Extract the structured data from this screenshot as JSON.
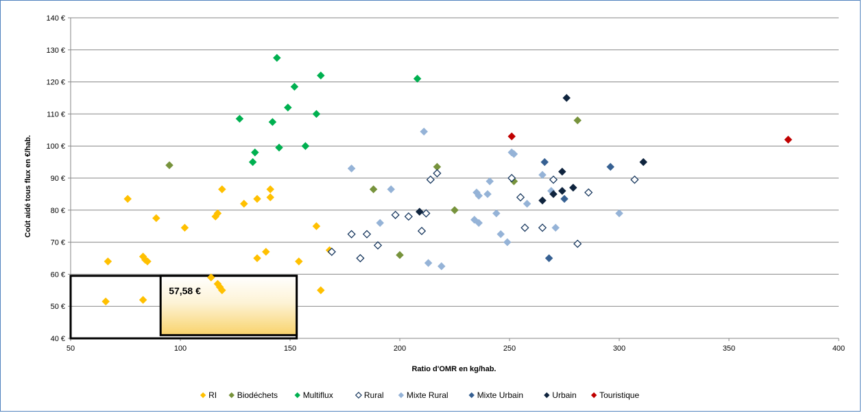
{
  "chart_data": {
    "type": "scatter",
    "xlabel": "Ratio d'OMR en kg/hab.",
    "ylabel": "Coût aidé tous flux en €/hab.",
    "xlim": [
      50,
      400
    ],
    "ylim": [
      40,
      140
    ],
    "x_ticks": [
      "50",
      "100",
      "150",
      "200",
      "250",
      "300",
      "350",
      "400"
    ],
    "y_ticks": [
      "40 €",
      "50 €",
      "60 €",
      "70 €",
      "80 €",
      "90 €",
      "100 €",
      "110 €",
      "120 €",
      "130 €",
      "140 €"
    ],
    "grid": "horizontal",
    "legend_position": "bottom",
    "series": [
      {
        "name": "RI",
        "color": "#ffc000",
        "marker": "filled",
        "points": [
          [
            66,
            51.5
          ],
          [
            67,
            64
          ],
          [
            76,
            83.5
          ],
          [
            83,
            52
          ],
          [
            83,
            65.5
          ],
          [
            84,
            64.5
          ],
          [
            85,
            64
          ],
          [
            89,
            77.5
          ],
          [
            102,
            74.5
          ],
          [
            114,
            59
          ],
          [
            116,
            78
          ],
          [
            117,
            57
          ],
          [
            117,
            79
          ],
          [
            118,
            56
          ],
          [
            119,
            55
          ],
          [
            119,
            86.5
          ],
          [
            129,
            82
          ],
          [
            135,
            65
          ],
          [
            135,
            83.5
          ],
          [
            139,
            67
          ],
          [
            141,
            84
          ],
          [
            141,
            86.5
          ],
          [
            154,
            64
          ],
          [
            162,
            75
          ],
          [
            164,
            55
          ],
          [
            168,
            67.5
          ]
        ]
      },
      {
        "name": "Biodéchets",
        "color": "#77933c",
        "marker": "filled",
        "points": [
          [
            95,
            94
          ],
          [
            188,
            86.5
          ],
          [
            200,
            66
          ],
          [
            217,
            93.5
          ],
          [
            225,
            80
          ],
          [
            252,
            89
          ],
          [
            281,
            108
          ]
        ]
      },
      {
        "name": "Multiflux",
        "color": "#00b050",
        "marker": "filled",
        "points": [
          [
            127,
            108.5
          ],
          [
            133,
            95
          ],
          [
            134,
            98
          ],
          [
            142,
            107.5
          ],
          [
            144,
            127.5
          ],
          [
            145,
            99.5
          ],
          [
            149,
            112
          ],
          [
            152,
            118.5
          ],
          [
            157,
            100
          ],
          [
            162,
            110
          ],
          [
            164,
            122
          ],
          [
            208,
            121
          ]
        ]
      },
      {
        "name": "Rural",
        "color": "#17375e",
        "marker": "hollow",
        "points": [
          [
            169,
            67
          ],
          [
            178,
            72.5
          ],
          [
            182,
            65
          ],
          [
            185,
            72.5
          ],
          [
            190,
            69
          ],
          [
            198,
            78.5
          ],
          [
            204,
            78
          ],
          [
            210,
            73.5
          ],
          [
            212,
            79
          ],
          [
            214,
            89.5
          ],
          [
            217,
            91.5
          ],
          [
            251,
            90
          ],
          [
            255,
            84
          ],
          [
            257,
            74.5
          ],
          [
            265,
            74.5
          ],
          [
            270,
            89.5
          ],
          [
            281,
            69.5
          ],
          [
            286,
            85.5
          ],
          [
            307,
            89.5
          ]
        ]
      },
      {
        "name": "Mixte Rural",
        "color": "#95b3d7",
        "marker": "filled",
        "points": [
          [
            178,
            93
          ],
          [
            191,
            76
          ],
          [
            196,
            86.5
          ],
          [
            211,
            104.5
          ],
          [
            213,
            63.5
          ],
          [
            219,
            62.5
          ],
          [
            234,
            77
          ],
          [
            235,
            85.5
          ],
          [
            236,
            76
          ],
          [
            236,
            84.5
          ],
          [
            240,
            85
          ],
          [
            241,
            89
          ],
          [
            244,
            79
          ],
          [
            246,
            72.5
          ],
          [
            249,
            70
          ],
          [
            251,
            98
          ],
          [
            252,
            97.5
          ],
          [
            258,
            82
          ],
          [
            265,
            91
          ],
          [
            269,
            86
          ],
          [
            271,
            74.5
          ],
          [
            300,
            79
          ]
        ]
      },
      {
        "name": "Mixte Urbain",
        "color": "#366092",
        "marker": "filled",
        "points": [
          [
            266,
            95
          ],
          [
            268,
            65
          ],
          [
            275,
            83.5
          ],
          [
            296,
            93.5
          ]
        ]
      },
      {
        "name": "Urbain",
        "color": "#0f243e",
        "marker": "filled",
        "points": [
          [
            209,
            79.5
          ],
          [
            265,
            83
          ],
          [
            270,
            85
          ],
          [
            274,
            92
          ],
          [
            274,
            86
          ],
          [
            276,
            115
          ],
          [
            279,
            87
          ],
          [
            311,
            95
          ]
        ]
      },
      {
        "name": "Touristique",
        "color": "#c00000",
        "marker": "filled",
        "points": [
          [
            251,
            103
          ],
          [
            377,
            102
          ]
        ]
      }
    ],
    "annotations": [
      {
        "type": "rect",
        "x_range": [
          50,
          153
        ],
        "y_range": [
          40,
          59.5
        ],
        "border": "#000000",
        "fill": "#ffffff"
      },
      {
        "type": "rect",
        "x_range": [
          91,
          153
        ],
        "y_range": [
          41,
          59.5
        ],
        "border": "#000000",
        "fill": "gradient-white-to-yellow",
        "label": "57,58 €"
      }
    ]
  }
}
